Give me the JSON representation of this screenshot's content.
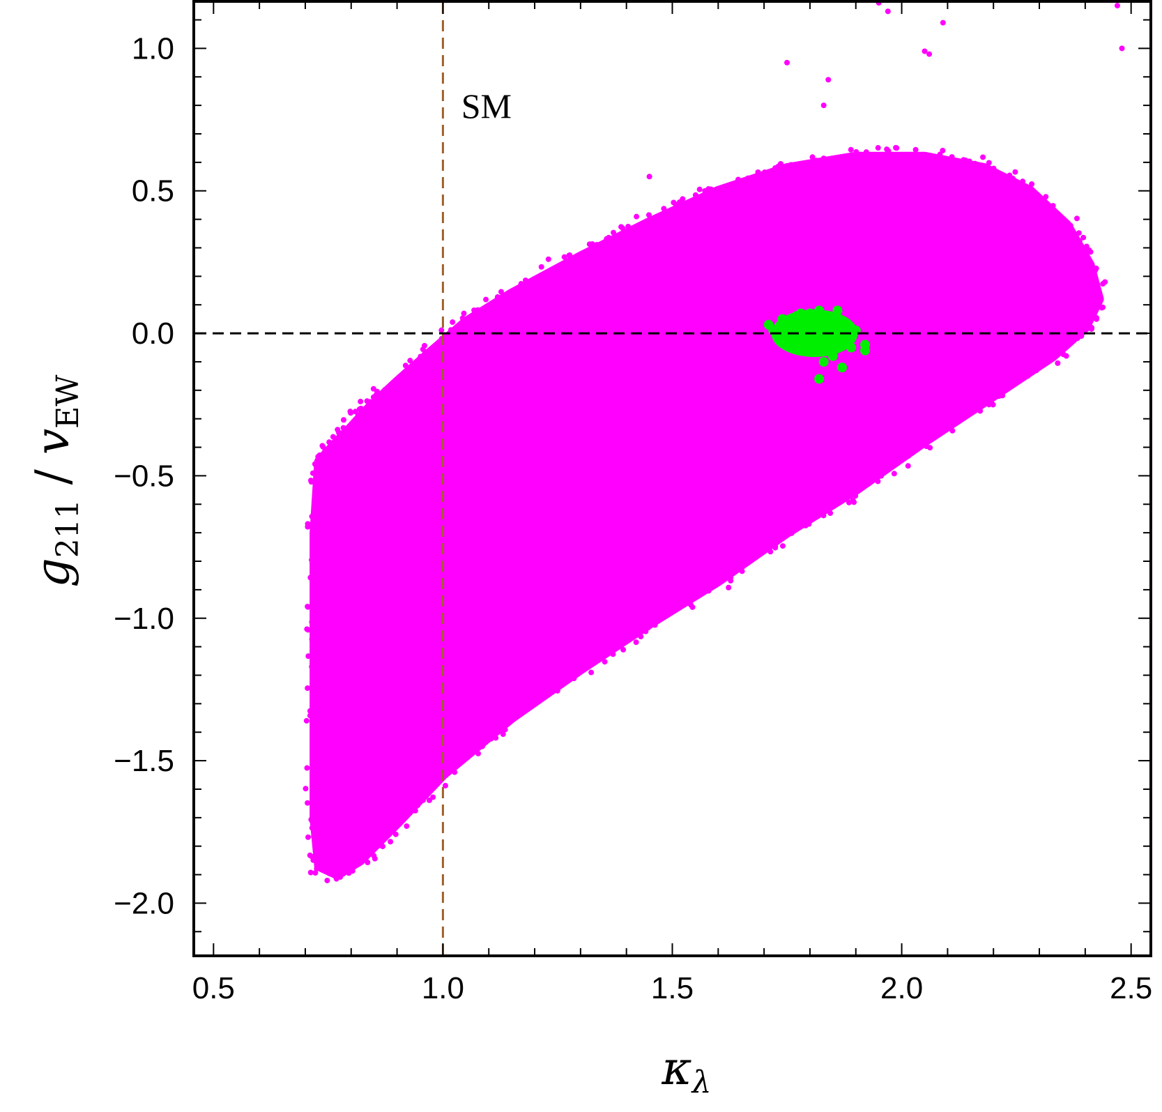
{
  "chart_data": {
    "type": "scatter",
    "xlabel": "κ_λ",
    "ylabel": "g_211 / v_EW",
    "xlim": [
      0.46,
      2.54
    ],
    "ylim": [
      -2.18,
      1.16
    ],
    "xticks": [
      0.5,
      1.0,
      1.5,
      2.0,
      2.5
    ],
    "xtick_labels": [
      "0.5",
      "1.0",
      "1.5",
      "2.0",
      "2.5"
    ],
    "yticks": [
      -2.0,
      -1.5,
      -1.0,
      -0.5,
      0.0,
      0.5,
      1.0
    ],
    "ytick_labels": [
      "−2.0",
      "−1.5",
      "−1.0",
      "−0.5",
      "0.0",
      "0.5",
      "1.0"
    ],
    "grid": false,
    "reference_lines": [
      {
        "orientation": "vertical",
        "value": 1.0,
        "style": "dashed",
        "color": "#A0612B"
      },
      {
        "orientation": "horizontal",
        "value": 0.0,
        "style": "dashed",
        "color": "#000000"
      }
    ],
    "annotations": [
      {
        "text": "SM",
        "x": 1.04,
        "y": 0.8
      }
    ],
    "series": [
      {
        "color": "#FF00FF",
        "region_boundary": [
          [
            0.72,
            -0.7
          ],
          [
            0.73,
            -0.45
          ],
          [
            0.77,
            -0.38
          ],
          [
            0.8,
            -0.33
          ],
          [
            0.84,
            -0.26
          ],
          [
            0.9,
            -0.17
          ],
          [
            0.97,
            -0.07
          ],
          [
            1.05,
            0.04
          ],
          [
            1.15,
            0.14
          ],
          [
            1.3,
            0.27
          ],
          [
            1.45,
            0.39
          ],
          [
            1.6,
            0.5
          ],
          [
            1.75,
            0.58
          ],
          [
            1.9,
            0.62
          ],
          [
            2.05,
            0.62
          ],
          [
            2.18,
            0.58
          ],
          [
            2.28,
            0.5
          ],
          [
            2.36,
            0.38
          ],
          [
            2.41,
            0.24
          ],
          [
            2.43,
            0.12
          ],
          [
            2.4,
            0.02
          ],
          [
            2.33,
            -0.08
          ],
          [
            2.2,
            -0.22
          ],
          [
            2.05,
            -0.38
          ],
          [
            1.9,
            -0.55
          ],
          [
            1.75,
            -0.7
          ],
          [
            1.6,
            -0.87
          ],
          [
            1.45,
            -1.02
          ],
          [
            1.3,
            -1.18
          ],
          [
            1.15,
            -1.35
          ],
          [
            1.0,
            -1.55
          ],
          [
            0.9,
            -1.72
          ],
          [
            0.82,
            -1.85
          ],
          [
            0.77,
            -1.9
          ],
          [
            0.73,
            -1.87
          ],
          [
            0.72,
            -1.7
          ],
          [
            0.72,
            -1.3
          ],
          [
            0.72,
            -1.0
          ]
        ],
        "outliers": [
          [
            1.79,
            0.46
          ],
          [
            1.45,
            0.55
          ],
          [
            1.23,
            0.26
          ],
          [
            1.75,
            0.95
          ],
          [
            1.84,
            0.89
          ],
          [
            1.83,
            0.8
          ],
          [
            1.97,
            1.13
          ],
          [
            1.95,
            1.16
          ],
          [
            2.05,
            0.99
          ],
          [
            2.06,
            0.98
          ],
          [
            2.09,
            1.09
          ],
          [
            2.47,
            1.15
          ],
          [
            2.48,
            1.0
          ],
          [
            1.78,
            0.4
          ],
          [
            2.34,
            0.42
          ]
        ]
      },
      {
        "color": "#00EE00",
        "center": [
          1.81,
          0.0
        ],
        "spread": [
          0.05,
          0.03
        ],
        "points": [
          [
            1.71,
            0.03
          ],
          [
            1.72,
            0.01
          ],
          [
            1.74,
            0.05
          ],
          [
            1.76,
            -0.02
          ],
          [
            1.77,
            0.06
          ],
          [
            1.78,
            0.02
          ],
          [
            1.79,
            -0.04
          ],
          [
            1.8,
            0.07
          ],
          [
            1.81,
            0.0
          ],
          [
            1.82,
            -0.06
          ],
          [
            1.82,
            0.08
          ],
          [
            1.83,
            -0.1
          ],
          [
            1.84,
            0.04
          ],
          [
            1.85,
            -0.08
          ],
          [
            1.86,
            0.05
          ],
          [
            1.87,
            -0.02
          ],
          [
            1.88,
            0.03
          ],
          [
            1.89,
            -0.05
          ],
          [
            1.9,
            0.01
          ],
          [
            1.92,
            -0.04
          ],
          [
            1.92,
            -0.06
          ],
          [
            1.82,
            -0.16
          ],
          [
            1.87,
            -0.12
          ],
          [
            1.75,
            0.0
          ],
          [
            1.8,
            0.04
          ],
          [
            1.84,
            -0.03
          ],
          [
            1.78,
            0.07
          ],
          [
            1.86,
            0.08
          ],
          [
            1.83,
            0.02
          ],
          [
            1.79,
            -0.01
          ]
        ]
      }
    ]
  }
}
